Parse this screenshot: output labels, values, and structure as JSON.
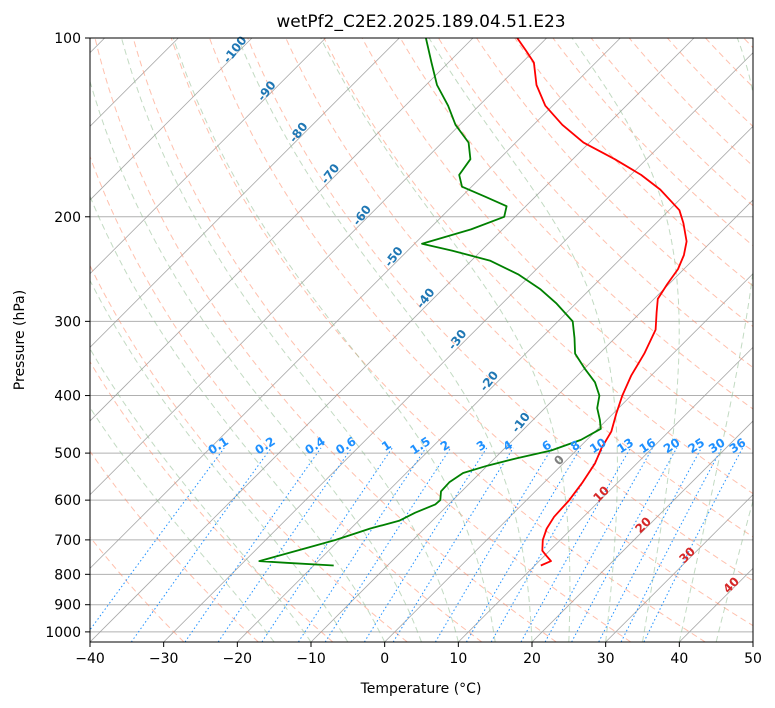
{
  "chart_data": {
    "type": "line",
    "subtype": "skew-t log-p diagram",
    "title": "wetPf2_C2E2.2025.189.04.51.E23",
    "xlabel": "Temperature (°C)",
    "ylabel": "Pressure (hPa)",
    "xlim": [
      -40,
      50
    ],
    "ylim": [
      1040,
      100
    ],
    "yscale": "log",
    "grid": true,
    "x_ticks": [
      "−40",
      "−30",
      "−20",
      "−10",
      "0",
      "10",
      "20",
      "30",
      "40",
      "50"
    ],
    "x_tick_values": [
      -40,
      -30,
      -20,
      -10,
      0,
      10,
      20,
      30,
      40,
      50
    ],
    "y_ticks": [
      "100",
      "200",
      "300",
      "400",
      "500",
      "600",
      "700",
      "800",
      "900",
      "1000"
    ],
    "y_tick_values": [
      100,
      200,
      300,
      400,
      500,
      600,
      700,
      800,
      900,
      1000
    ],
    "colors": {
      "temperature": "#ff0000",
      "dewpoint": "#008000",
      "isotherm": "#999999",
      "dry_adiabat": "#ff8c69",
      "moist_adiabat": "#8fbc8f",
      "mixing_ratio": "#1e90ff",
      "dry_label": "#1f77b4",
      "wet_label": "#d62728"
    },
    "series": [
      {
        "name": "",
        "color": "#ff0000",
        "points": [
          [
            773,
            10.8
          ],
          [
            760,
            11.6
          ],
          [
            745,
            10.3
          ],
          [
            730,
            9.0
          ],
          [
            700,
            7.6
          ],
          [
            670,
            6.6
          ],
          [
            640,
            6.0
          ],
          [
            600,
            5.8
          ],
          [
            560,
            5.2
          ],
          [
            520,
            4.3
          ],
          [
            490,
            3.1
          ],
          [
            460,
            2.2
          ],
          [
            430,
            0.5
          ],
          [
            400,
            -1.2
          ],
          [
            370,
            -2.7
          ],
          [
            340,
            -3.9
          ],
          [
            310,
            -5.6
          ],
          [
            290,
            -7.8
          ],
          [
            275,
            -9.5
          ],
          [
            260,
            -10.2
          ],
          [
            245,
            -10.8
          ],
          [
            232,
            -11.9
          ],
          [
            220,
            -13.4
          ],
          [
            205,
            -16.3
          ],
          [
            195,
            -18.6
          ],
          [
            180,
            -24.0
          ],
          [
            170,
            -28.6
          ],
          [
            160,
            -34.3
          ],
          [
            150,
            -40.8
          ],
          [
            140,
            -46.1
          ],
          [
            130,
            -51.0
          ],
          [
            120,
            -55.0
          ],
          [
            110,
            -58.4
          ],
          [
            105,
            -61.1
          ],
          [
            100,
            -64.0
          ]
        ]
      },
      {
        "name": "",
        "color": "#008000",
        "points": [
          [
            773,
            -17.3
          ],
          [
            765,
            -24.1
          ],
          [
            760,
            -28.0
          ],
          [
            745,
            -26.2
          ],
          [
            720,
            -23.1
          ],
          [
            700,
            -20.5
          ],
          [
            670,
            -17.4
          ],
          [
            650,
            -14.5
          ],
          [
            630,
            -13.4
          ],
          [
            610,
            -11.8
          ],
          [
            600,
            -11.7
          ],
          [
            580,
            -12.8
          ],
          [
            560,
            -12.9
          ],
          [
            540,
            -12.3
          ],
          [
            525,
            -10.0
          ],
          [
            510,
            -7.0
          ],
          [
            495,
            -3.4
          ],
          [
            475,
            -0.8
          ],
          [
            455,
            0.4
          ],
          [
            440,
            -0.9
          ],
          [
            420,
            -2.9
          ],
          [
            400,
            -4.3
          ],
          [
            380,
            -6.7
          ],
          [
            360,
            -10.0
          ],
          [
            340,
            -13.3
          ],
          [
            320,
            -15.5
          ],
          [
            300,
            -18.0
          ],
          [
            280,
            -22.6
          ],
          [
            265,
            -26.7
          ],
          [
            250,
            -31.8
          ],
          [
            237,
            -37.5
          ],
          [
            228,
            -44.0
          ],
          [
            222,
            -49.0
          ],
          [
            210,
            -44.3
          ],
          [
            200,
            -41.5
          ],
          [
            192,
            -42.6
          ],
          [
            185,
            -46.8
          ],
          [
            178,
            -51.3
          ],
          [
            170,
            -53.3
          ],
          [
            160,
            -53.9
          ],
          [
            150,
            -56.4
          ],
          [
            140,
            -60.6
          ],
          [
            130,
            -64.2
          ],
          [
            120,
            -68.5
          ],
          [
            110,
            -72.3
          ],
          [
            100,
            -76.4
          ]
        ]
      }
    ],
    "mixing_ratio_labels": [
      "0.1",
      "0.2",
      "0.4",
      "0.6",
      "1",
      "1.5",
      "2",
      "3",
      "4",
      "6",
      "8",
      "10",
      "13",
      "16",
      "20",
      "25",
      "30",
      "36"
    ],
    "mixing_ratio_values": [
      0.1,
      0.2,
      0.4,
      0.6,
      1,
      1.5,
      2,
      3,
      4,
      6,
      8,
      10,
      13,
      16,
      20,
      25,
      30,
      36
    ],
    "dry_adiabat_labels": [
      "-100",
      "-90",
      "-80",
      "-70",
      "-60",
      "-50",
      "-40",
      "-30",
      "-20",
      "-10"
    ],
    "moist_adiabat_labels": [
      "0",
      "10",
      "20",
      "30",
      "40"
    ]
  }
}
